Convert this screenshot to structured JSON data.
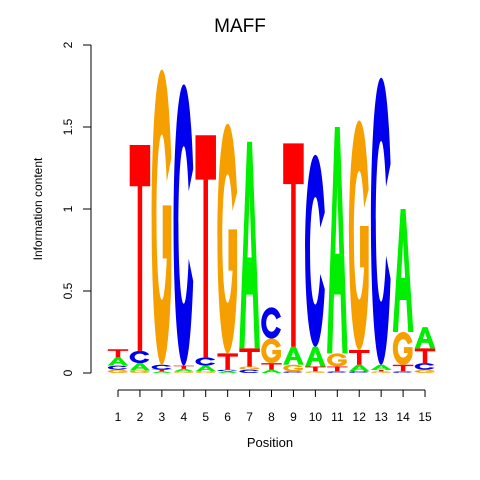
{
  "chart_data": {
    "type": "sequence_logo",
    "title": "MAFF",
    "xlabel": "Position",
    "ylabel": "Information content",
    "ylim": [
      0,
      2
    ],
    "y_ticks": [
      "0",
      "0.5",
      "1",
      "1.5",
      "2"
    ],
    "x_ticks": [
      "1",
      "2",
      "3",
      "4",
      "5",
      "6",
      "7",
      "8",
      "9",
      "10",
      "11",
      "12",
      "13",
      "14",
      "15"
    ],
    "letter_colors": {
      "A": "#00ee00",
      "C": "#0000ee",
      "G": "#f5a000",
      "T": "#ff0000"
    },
    "positions": [
      {
        "position": 1,
        "letters": [
          [
            "G",
            0.02
          ],
          [
            "C",
            0.025
          ],
          [
            "A",
            0.05
          ],
          [
            "T",
            0.05
          ]
        ]
      },
      {
        "position": 2,
        "letters": [
          [
            "G",
            0.015
          ],
          [
            "A",
            0.045
          ],
          [
            "C",
            0.075
          ],
          [
            "T",
            1.255
          ]
        ]
      },
      {
        "position": 3,
        "letters": [
          [
            "A",
            0.01
          ],
          [
            "T",
            0.01
          ],
          [
            "C",
            0.03
          ],
          [
            "G",
            1.8
          ]
        ]
      },
      {
        "position": 4,
        "letters": [
          [
            "G",
            0.01
          ],
          [
            "A",
            0.015
          ],
          [
            "T",
            0.02
          ],
          [
            "C",
            1.715
          ]
        ]
      },
      {
        "position": 5,
        "letters": [
          [
            "G",
            0.01
          ],
          [
            "A",
            0.035
          ],
          [
            "C",
            0.05
          ],
          [
            "T",
            1.355
          ]
        ]
      },
      {
        "position": 6,
        "letters": [
          [
            "A",
            0.01
          ],
          [
            "C",
            0.01
          ],
          [
            "T",
            0.1
          ],
          [
            "G",
            1.4
          ]
        ]
      },
      {
        "position": 7,
        "letters": [
          [
            "C",
            0.02
          ],
          [
            "G",
            0.02
          ],
          [
            "T",
            0.11
          ],
          [
            "A",
            1.26
          ]
        ]
      },
      {
        "position": 8,
        "letters": [
          [
            "A",
            0.02
          ],
          [
            "T",
            0.04
          ],
          [
            "G",
            0.15
          ],
          [
            "C",
            0.19
          ]
        ]
      },
      {
        "position": 9,
        "letters": [
          [
            "C",
            0.01
          ],
          [
            "G",
            0.04
          ],
          [
            "A",
            0.11
          ],
          [
            "T",
            1.24
          ]
        ]
      },
      {
        "position": 10,
        "letters": [
          [
            "G",
            0.01
          ],
          [
            "T",
            0.03
          ],
          [
            "A",
            0.12
          ],
          [
            "C",
            1.17
          ]
        ]
      },
      {
        "position": 11,
        "letters": [
          [
            "C",
            0.01
          ],
          [
            "T",
            0.03
          ],
          [
            "G",
            0.08
          ],
          [
            "A",
            1.38
          ]
        ]
      },
      {
        "position": 12,
        "letters": [
          [
            "C",
            0.01
          ],
          [
            "A",
            0.04
          ],
          [
            "T",
            0.09
          ],
          [
            "G",
            1.4
          ]
        ]
      },
      {
        "position": 13,
        "letters": [
          [
            "G",
            0.01
          ],
          [
            "T",
            0.01
          ],
          [
            "A",
            0.03
          ],
          [
            "C",
            1.75
          ]
        ]
      },
      {
        "position": 14,
        "letters": [
          [
            "C",
            0.01
          ],
          [
            "T",
            0.04
          ],
          [
            "G",
            0.2
          ],
          [
            "A",
            0.75
          ]
        ]
      },
      {
        "position": 15,
        "letters": [
          [
            "G",
            0.02
          ],
          [
            "C",
            0.04
          ],
          [
            "T",
            0.09
          ],
          [
            "A",
            0.13
          ]
        ]
      }
    ]
  }
}
